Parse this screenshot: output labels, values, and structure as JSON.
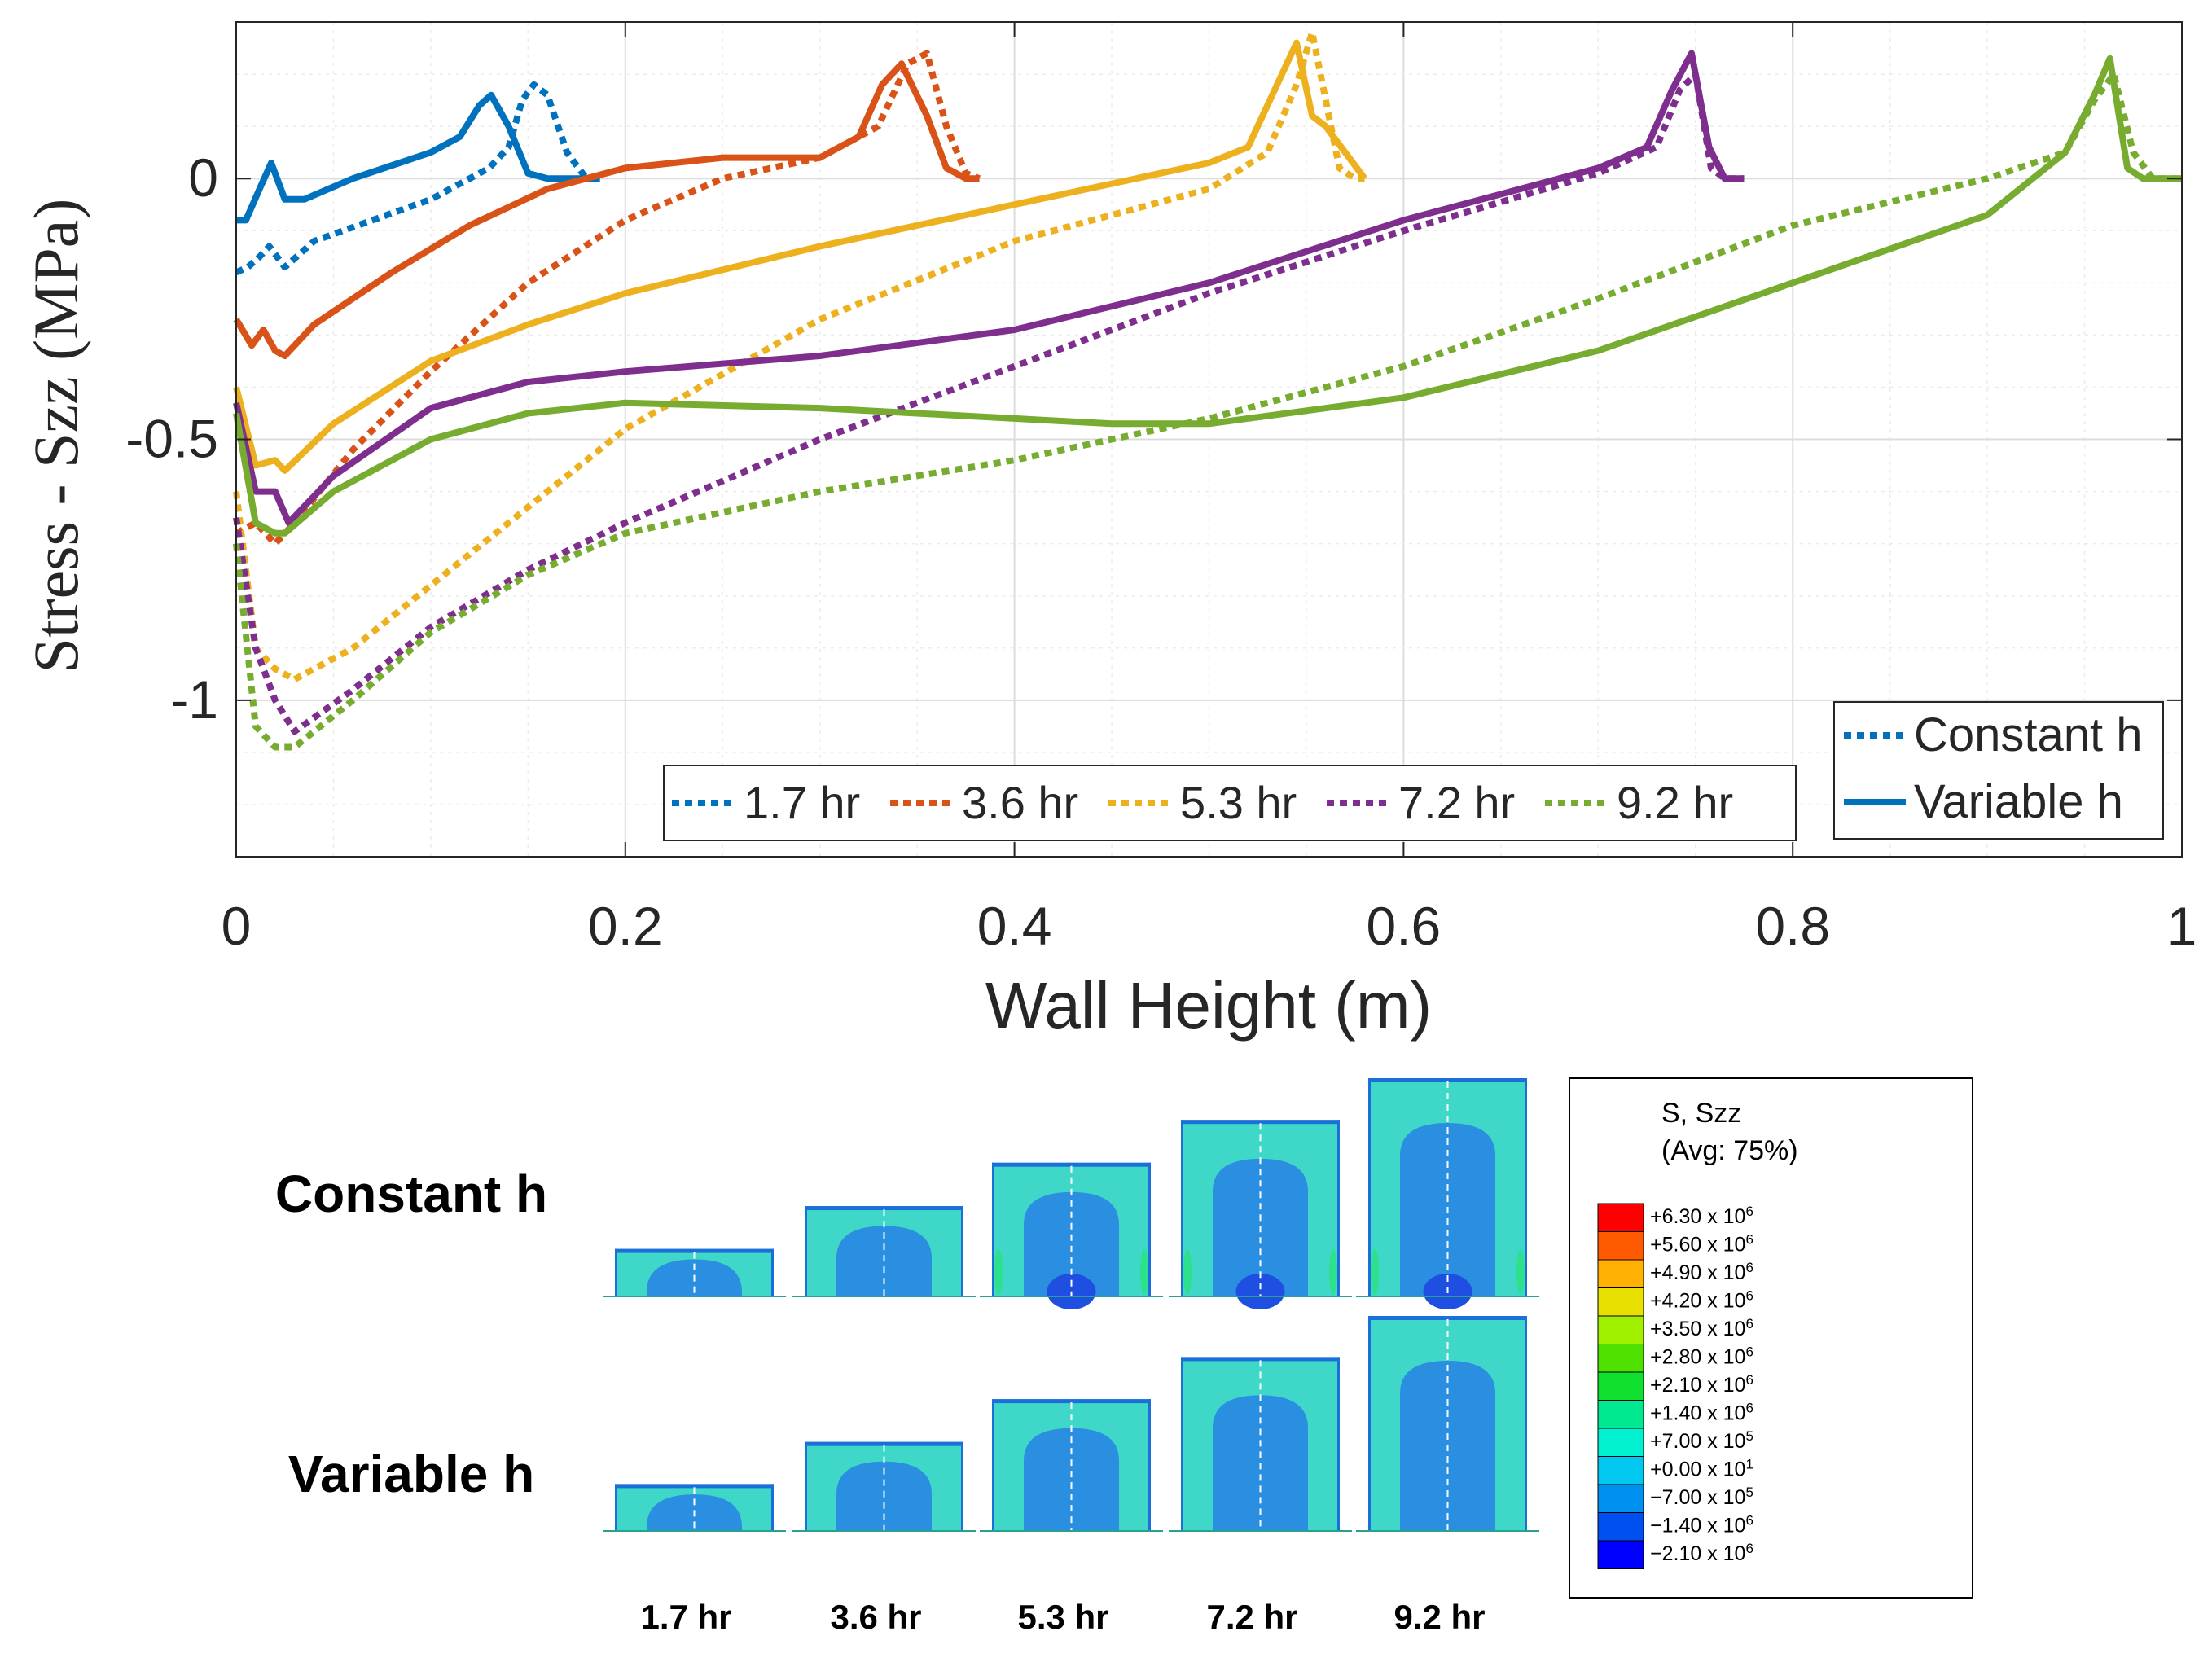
{
  "chart_data": {
    "type": "line",
    "title": "",
    "xlabel": "Wall Height (m)",
    "ylabel": "Stress - Szz (MPa)",
    "xlim": [
      0,
      1
    ],
    "ylim": [
      -1.3,
      0.3
    ],
    "xticks": [
      0,
      0.2,
      0.4,
      0.6,
      0.8,
      1
    ],
    "xtick_labels": [
      "0",
      "0.2",
      "0.4",
      "0.6",
      "0.8",
      "1"
    ],
    "yticks": [
      0,
      -0.5,
      -1
    ],
    "ytick_labels": [
      "0",
      "-0.5",
      "-1"
    ],
    "grid": true,
    "legend_time": [
      "1.7 hr",
      "3.6 hr",
      "5.3 hr",
      "7.2 hr",
      "9.2 hr"
    ],
    "legend_style": [
      "Constant h",
      "Variable h"
    ],
    "series": [
      {
        "name": "1.7 hr",
        "style": "Variable h",
        "color": "#0072BD",
        "x": [
          0,
          0.005,
          0.012,
          0.018,
          0.025,
          0.035,
          0.06,
          0.1,
          0.115,
          0.125,
          0.131,
          0.14,
          0.15,
          0.16,
          0.187
        ],
        "y": [
          -0.08,
          -0.08,
          -0.02,
          0.03,
          -0.04,
          -0.04,
          0.0,
          0.05,
          0.08,
          0.14,
          0.16,
          0.1,
          0.01,
          0.0,
          0.0
        ]
      },
      {
        "name": "1.7 hr",
        "style": "Constant h",
        "color": "#0072BD",
        "x": [
          0,
          0.006,
          0.012,
          0.017,
          0.025,
          0.04,
          0.07,
          0.1,
          0.13,
          0.14,
          0.147,
          0.153,
          0.16,
          0.17,
          0.18,
          0.187
        ],
        "y": [
          -0.18,
          -0.17,
          -0.15,
          -0.13,
          -0.17,
          -0.12,
          -0.08,
          -0.04,
          0.02,
          0.06,
          0.15,
          0.18,
          0.16,
          0.05,
          0.0,
          0.0
        ]
      },
      {
        "name": "3.6 hr",
        "style": "Variable h",
        "color": "#D95319",
        "x": [
          0,
          0.008,
          0.014,
          0.02,
          0.025,
          0.04,
          0.08,
          0.12,
          0.16,
          0.2,
          0.25,
          0.3,
          0.32,
          0.332,
          0.342,
          0.355,
          0.365,
          0.375,
          0.382
        ],
        "y": [
          -0.27,
          -0.32,
          -0.29,
          -0.33,
          -0.34,
          -0.28,
          -0.18,
          -0.09,
          -0.02,
          0.02,
          0.04,
          0.04,
          0.08,
          0.18,
          0.22,
          0.12,
          0.02,
          0.0,
          0.0
        ]
      },
      {
        "name": "3.6 hr",
        "style": "Constant h",
        "color": "#D95319",
        "x": [
          0,
          0.01,
          0.02,
          0.03,
          0.06,
          0.1,
          0.15,
          0.2,
          0.25,
          0.3,
          0.33,
          0.345,
          0.355,
          0.365,
          0.375,
          0.382
        ],
        "y": [
          -0.68,
          -0.66,
          -0.7,
          -0.66,
          -0.52,
          -0.37,
          -0.2,
          -0.08,
          0.0,
          0.04,
          0.1,
          0.22,
          0.24,
          0.1,
          0.01,
          0.0
        ]
      },
      {
        "name": "5.3 hr",
        "style": "Variable h",
        "color": "#EDB120",
        "x": [
          0,
          0.01,
          0.02,
          0.025,
          0.05,
          0.1,
          0.15,
          0.2,
          0.3,
          0.4,
          0.5,
          0.52,
          0.535,
          0.545,
          0.553,
          0.56,
          0.57,
          0.58
        ],
        "y": [
          -0.4,
          -0.55,
          -0.54,
          -0.56,
          -0.47,
          -0.35,
          -0.28,
          -0.22,
          -0.13,
          -0.05,
          0.03,
          0.06,
          0.18,
          0.26,
          0.12,
          0.1,
          0.05,
          0.0
        ]
      },
      {
        "name": "5.3 hr",
        "style": "Constant h",
        "color": "#EDB120",
        "x": [
          0,
          0.01,
          0.02,
          0.03,
          0.06,
          0.1,
          0.15,
          0.2,
          0.3,
          0.4,
          0.5,
          0.53,
          0.545,
          0.553,
          0.56,
          0.567,
          0.575,
          0.58
        ],
        "y": [
          -0.6,
          -0.9,
          -0.94,
          -0.96,
          -0.9,
          -0.78,
          -0.63,
          -0.48,
          -0.27,
          -0.12,
          -0.02,
          0.05,
          0.18,
          0.28,
          0.15,
          0.02,
          0.0,
          0.0
        ]
      },
      {
        "name": "7.2 hr",
        "style": "Variable h",
        "color": "#7E2F8E",
        "x": [
          0,
          0.01,
          0.02,
          0.027,
          0.05,
          0.1,
          0.15,
          0.2,
          0.3,
          0.4,
          0.5,
          0.6,
          0.7,
          0.725,
          0.738,
          0.748,
          0.757,
          0.765,
          0.775
        ],
        "y": [
          -0.43,
          -0.6,
          -0.6,
          -0.66,
          -0.57,
          -0.44,
          -0.39,
          -0.37,
          -0.34,
          -0.29,
          -0.2,
          -0.08,
          0.02,
          0.06,
          0.17,
          0.24,
          0.06,
          0.0,
          0.0
        ]
      },
      {
        "name": "7.2 hr",
        "style": "Constant h",
        "color": "#7E2F8E",
        "x": [
          0,
          0.01,
          0.02,
          0.03,
          0.06,
          0.1,
          0.15,
          0.2,
          0.3,
          0.4,
          0.5,
          0.6,
          0.7,
          0.73,
          0.742,
          0.75,
          0.758,
          0.765,
          0.775
        ],
        "y": [
          -0.65,
          -0.9,
          -1.0,
          -1.06,
          -0.98,
          -0.86,
          -0.75,
          -0.66,
          -0.5,
          -0.36,
          -0.22,
          -0.1,
          0.01,
          0.06,
          0.17,
          0.2,
          0.02,
          0.0,
          0.0
        ]
      },
      {
        "name": "9.2 hr",
        "style": "Variable h",
        "color": "#77AC30",
        "x": [
          0,
          0.01,
          0.02,
          0.025,
          0.05,
          0.1,
          0.15,
          0.2,
          0.3,
          0.4,
          0.45,
          0.5,
          0.6,
          0.7,
          0.8,
          0.9,
          0.94,
          0.955,
          0.963,
          0.972,
          0.98,
          1.0
        ],
        "y": [
          -0.45,
          -0.66,
          -0.68,
          -0.68,
          -0.6,
          -0.5,
          -0.45,
          -0.43,
          -0.44,
          -0.46,
          -0.47,
          -0.47,
          -0.42,
          -0.33,
          -0.2,
          -0.07,
          0.05,
          0.16,
          0.23,
          0.02,
          0.0,
          0.0
        ]
      },
      {
        "name": "9.2 hr",
        "style": "Constant h",
        "color": "#77AC30",
        "x": [
          0,
          0.01,
          0.02,
          0.03,
          0.06,
          0.1,
          0.15,
          0.2,
          0.3,
          0.4,
          0.5,
          0.6,
          0.7,
          0.8,
          0.9,
          0.94,
          0.955,
          0.965,
          0.975,
          0.985,
          1.0
        ],
        "y": [
          -0.7,
          -1.05,
          -1.09,
          -1.09,
          -1.0,
          -0.87,
          -0.76,
          -0.68,
          -0.6,
          -0.54,
          -0.46,
          -0.36,
          -0.23,
          -0.09,
          0.0,
          0.05,
          0.15,
          0.2,
          0.05,
          0.0,
          0.0
        ]
      }
    ]
  },
  "contour": {
    "row_labels": [
      "Constant h",
      "Variable h"
    ],
    "time_labels": [
      "1.7 hr",
      "3.6 hr",
      "5.3 hr",
      "7.2 hr",
      "9.2 hr"
    ],
    "height_fractions": [
      0.187,
      0.382,
      0.58,
      0.775,
      0.965
    ],
    "scale_title_1": "S, Szz",
    "scale_title_2": "(Avg: 75%)",
    "scale": [
      {
        "mant": "+6.30",
        "exp": "6",
        "color": "#FF0000"
      },
      {
        "mant": "+5.60",
        "exp": "6",
        "color": "#FF5A00"
      },
      {
        "mant": "+4.90",
        "exp": "6",
        "color": "#FFB000"
      },
      {
        "mant": "+4.20",
        "exp": "6",
        "color": "#E8E000"
      },
      {
        "mant": "+3.50",
        "exp": "6",
        "color": "#A0F000"
      },
      {
        "mant": "+2.80",
        "exp": "6",
        "color": "#50E000"
      },
      {
        "mant": "+2.10",
        "exp": "6",
        "color": "#10E030"
      },
      {
        "mant": "+1.40",
        "exp": "6",
        "color": "#00E890"
      },
      {
        "mant": "+7.00",
        "exp": "5",
        "color": "#00F0D0"
      },
      {
        "mant": "+0.00",
        "exp": "1",
        "color": "#00C8F0"
      },
      {
        "mant": "−7.00",
        "exp": "5",
        "color": "#0090F0"
      },
      {
        "mant": "−1.40",
        "exp": "6",
        "color": "#0050F0"
      },
      {
        "mant": "−2.10",
        "exp": "6",
        "color": "#0000FF"
      }
    ],
    "colors": {
      "teal": "#3FD8C8",
      "blue": "#2A8FE0",
      "dark": "#1F4FE0",
      "green": "#2CE08C",
      "edge": "#1B6FD8"
    }
  }
}
